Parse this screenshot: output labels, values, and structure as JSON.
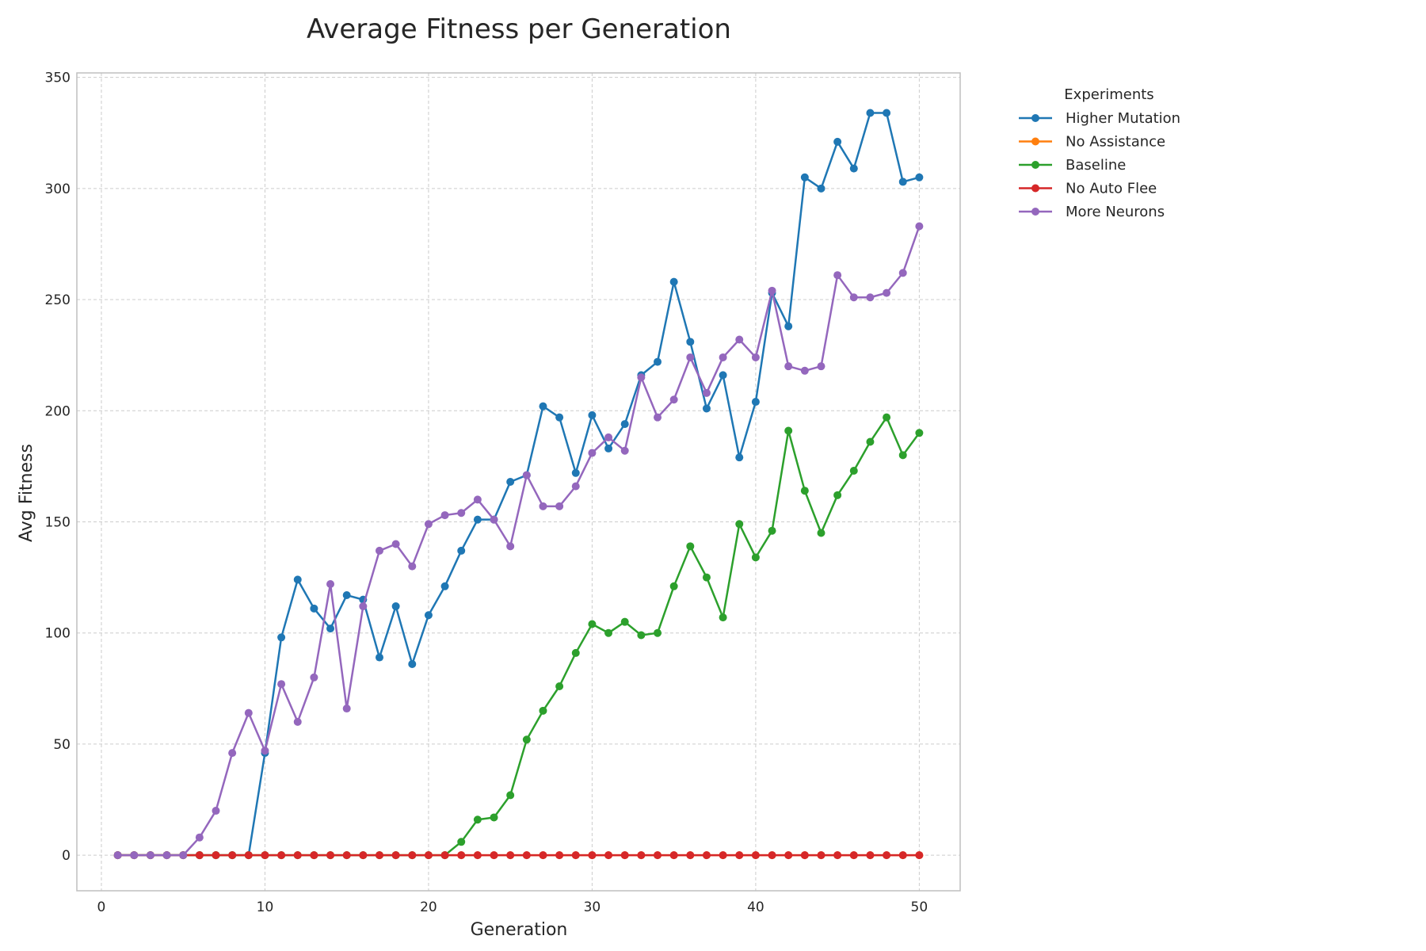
{
  "chart_data": {
    "type": "line",
    "title": "Average Fitness per Generation",
    "xlabel": "Generation",
    "ylabel": "Avg Fitness",
    "xlim": [
      -1.5,
      52.5
    ],
    "ylim": [
      -16,
      352
    ],
    "xticks": [
      0,
      10,
      20,
      30,
      40,
      50
    ],
    "yticks": [
      0,
      50,
      100,
      150,
      200,
      250,
      300,
      350
    ],
    "grid": true,
    "legend": {
      "title": "Experiments",
      "placement": "outside-top-right"
    },
    "x": [
      1,
      2,
      3,
      4,
      5,
      6,
      7,
      8,
      9,
      10,
      11,
      12,
      13,
      14,
      15,
      16,
      17,
      18,
      19,
      20,
      21,
      22,
      23,
      24,
      25,
      26,
      27,
      28,
      29,
      30,
      31,
      32,
      33,
      34,
      35,
      36,
      37,
      38,
      39,
      40,
      41,
      42,
      43,
      44,
      45,
      46,
      47,
      48,
      49,
      50
    ],
    "series": [
      {
        "name": "Higher Mutation",
        "color": "#1f77b4",
        "values": [
          0,
          0,
          0,
          0,
          0,
          0,
          0,
          0,
          0,
          46,
          98,
          124,
          111,
          102,
          117,
          115,
          89,
          112,
          86,
          108,
          121,
          137,
          151,
          151,
          168,
          171,
          202,
          197,
          172,
          198,
          183,
          194,
          216,
          222,
          258,
          231,
          201,
          216,
          179,
          204,
          253,
          238,
          305,
          300,
          321,
          309,
          334,
          334,
          303,
          305
        ]
      },
      {
        "name": "No Assistance",
        "color": "#ff7f0e",
        "values": [
          0,
          0,
          0,
          0,
          0,
          0,
          0,
          0,
          0,
          0,
          0,
          0,
          0,
          0,
          0,
          0,
          0,
          0,
          0,
          0,
          0,
          0,
          0,
          0,
          0,
          0,
          0,
          0,
          0,
          0,
          0,
          0,
          0,
          0,
          0,
          0,
          0,
          0,
          0,
          0,
          0,
          0,
          0,
          0,
          0,
          0,
          0,
          0,
          0,
          0
        ]
      },
      {
        "name": "Baseline",
        "color": "#2ca02c",
        "values": [
          0,
          0,
          0,
          0,
          0,
          0,
          0,
          0,
          0,
          0,
          0,
          0,
          0,
          0,
          0,
          0,
          0,
          0,
          0,
          0,
          0,
          6,
          16,
          17,
          27,
          52,
          65,
          76,
          91,
          104,
          100,
          105,
          99,
          100,
          121,
          139,
          125,
          107,
          149,
          134,
          146,
          191,
          164,
          145,
          162,
          173,
          186,
          197,
          180,
          190
        ]
      },
      {
        "name": "No Auto Flee",
        "color": "#d62728",
        "values": [
          0,
          0,
          0,
          0,
          0,
          0,
          0,
          0,
          0,
          0,
          0,
          0,
          0,
          0,
          0,
          0,
          0,
          0,
          0,
          0,
          0,
          0,
          0,
          0,
          0,
          0,
          0,
          0,
          0,
          0,
          0,
          0,
          0,
          0,
          0,
          0,
          0,
          0,
          0,
          0,
          0,
          0,
          0,
          0,
          0,
          0,
          0,
          0,
          0,
          0
        ]
      },
      {
        "name": "More Neurons",
        "color": "#9467bd",
        "values": [
          0,
          0,
          0,
          0,
          0,
          8,
          20,
          46,
          64,
          47,
          77,
          60,
          80,
          122,
          66,
          112,
          137,
          140,
          130,
          149,
          153,
          154,
          160,
          151,
          139,
          171,
          157,
          157,
          166,
          181,
          188,
          182,
          215,
          197,
          205,
          224,
          208,
          224,
          232,
          224,
          254,
          220,
          218,
          220,
          261,
          251,
          251,
          253,
          262,
          283
        ]
      }
    ]
  }
}
